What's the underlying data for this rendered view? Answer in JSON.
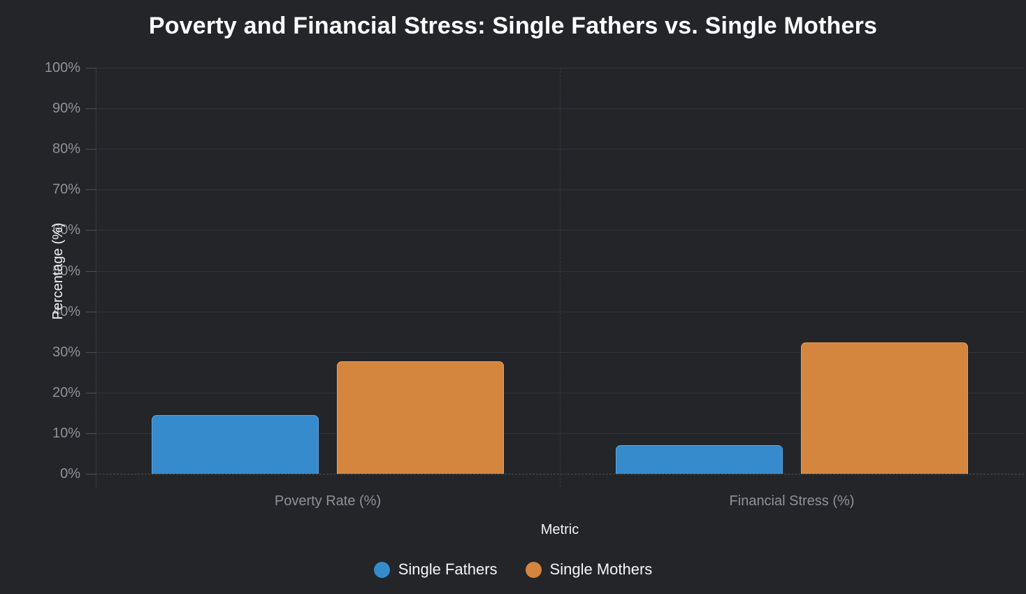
{
  "chart_data": {
    "type": "bar",
    "title": "Poverty and Financial Stress: Single Fathers vs. Single Mothers",
    "xlabel": "Metric",
    "ylabel": "Percentage (%)",
    "categories": [
      "Poverty Rate (%)",
      "Financial Stress (%)"
    ],
    "series": [
      {
        "name": "Single Fathers",
        "color": "#368bcd",
        "border_color": "#5ea5dd",
        "values": [
          14.5,
          7.0
        ]
      },
      {
        "name": "Single Mothers",
        "color": "#d4853e",
        "border_color": "#eda055",
        "values": [
          27.7,
          32.3
        ]
      }
    ],
    "ylim": [
      0,
      100
    ],
    "y_tick_step": 10,
    "y_tick_labels": [
      "0%",
      "10%",
      "20%",
      "30%",
      "40%",
      "50%",
      "60%",
      "70%",
      "80%",
      "90%",
      "100%"
    ],
    "grid": true,
    "legend_position": "bottom"
  },
  "colors": {
    "background": "#232529",
    "gridline": "#2f3236",
    "axis_line": "#4c5054",
    "tick_label": "#8f9297",
    "axis_title": "#eef0f2",
    "title_text": "#ffffff",
    "legend_text": "#f5f6f8",
    "series_blue": "#368bcd",
    "series_orange": "#d4853e"
  }
}
